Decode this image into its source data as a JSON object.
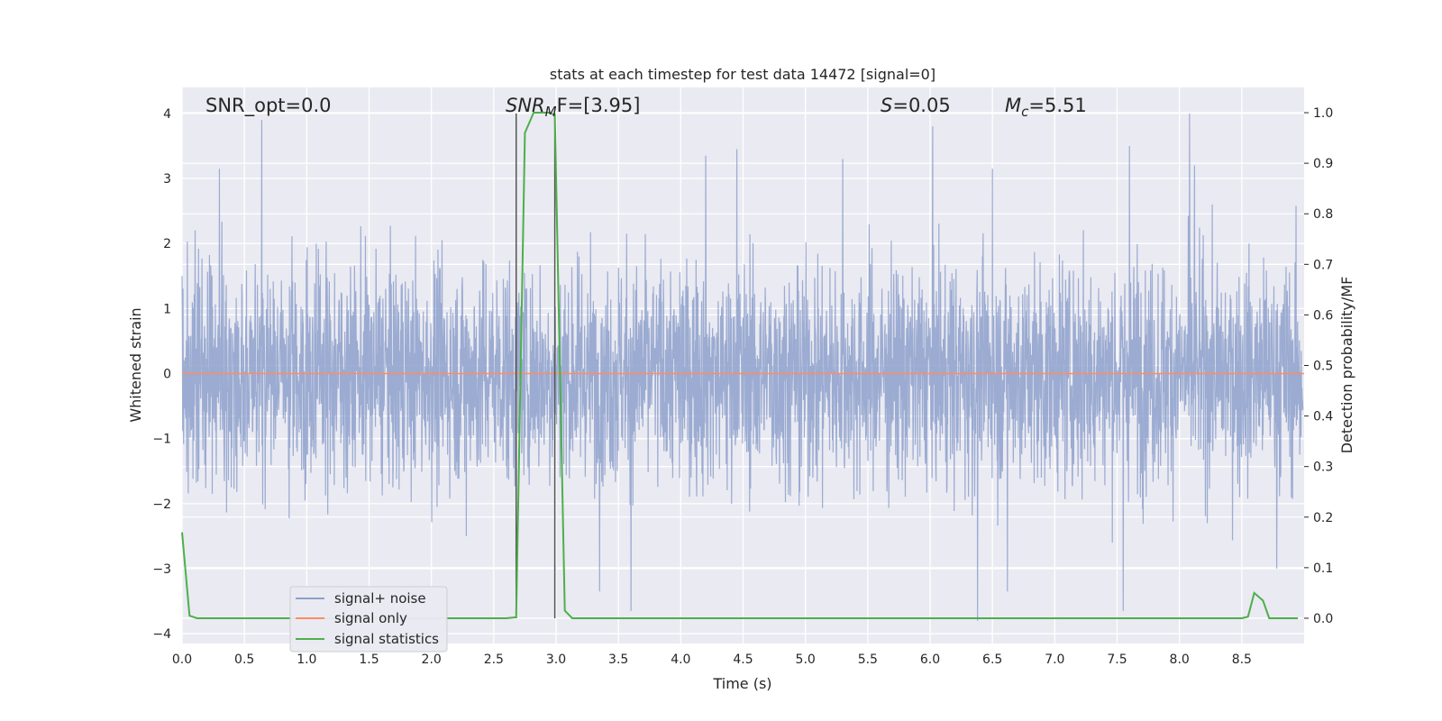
{
  "chart_data": {
    "type": "line",
    "title": "stats at each timestep for test data 14472 [signal=0]",
    "xlabel": "Time (s)",
    "ylabel": "Whitened strain",
    "ylabel_right": "Detection probability/MF",
    "xlim": [
      0.0,
      9.0
    ],
    "ylim": [
      -4.15,
      4.4
    ],
    "ylim_right": [
      -0.05,
      1.05
    ],
    "x_ticks": [
      "0.0",
      "0.5",
      "1.0",
      "1.5",
      "2.0",
      "2.5",
      "3.0",
      "3.5",
      "4.0",
      "4.5",
      "5.0",
      "5.5",
      "6.0",
      "6.5",
      "7.0",
      "7.5",
      "8.0",
      "8.5"
    ],
    "y_ticks": [
      "4",
      "3",
      "2",
      "1",
      "0",
      "−1",
      "−2",
      "−3",
      "−4"
    ],
    "y_ticks_right": [
      "1.0",
      "0.9",
      "0.8",
      "0.7",
      "0.6",
      "0.5",
      "0.4",
      "0.3",
      "0.2",
      "0.1",
      "0.0"
    ],
    "grid": true,
    "legend_position": "lower-left",
    "annotations": {
      "snr_opt": "SNR_opt=0.0",
      "snr_mf": "SNR",
      "snr_mf_sub": "M",
      "snr_mf_rest": "F=[3.95]",
      "s": "S",
      "s_rest": "=0.05",
      "mc": "M",
      "mc_sub": "c",
      "mc_rest": "=5.51"
    },
    "vlines": [
      2.68,
      2.99
    ],
    "series": [
      {
        "name": "signal+ noise",
        "color": "#8da0cb",
        "description_value": "whitened noise, amplitude ~±2 with spikes up to ±4",
        "peaks": [
          [
            0.3,
            3.15
          ],
          [
            0.64,
            3.9
          ],
          [
            2.28,
            -2.5
          ],
          [
            3.35,
            -3.35
          ],
          [
            3.6,
            -3.65
          ],
          [
            4.2,
            3.35
          ],
          [
            4.45,
            3.45
          ],
          [
            5.3,
            3.3
          ],
          [
            6.02,
            3.8
          ],
          [
            6.38,
            -3.8
          ],
          [
            6.5,
            3.15
          ],
          [
            6.62,
            -3.35
          ],
          [
            7.55,
            -3.65
          ],
          [
            7.6,
            3.5
          ],
          [
            8.08,
            4.0
          ],
          [
            8.12,
            3.2
          ],
          [
            8.78,
            -3.0
          ]
        ]
      },
      {
        "name": "signal only",
        "color": "#fc8d62",
        "x": [
          0.0,
          9.0
        ],
        "y": [
          0.0,
          0.0
        ]
      },
      {
        "name": "signal statistics",
        "color": "#4daf4a",
        "axis": "right",
        "x": [
          0.0,
          0.06,
          0.12,
          0.2,
          2.6,
          2.68,
          2.75,
          2.82,
          2.95,
          2.99,
          3.07,
          3.13,
          3.2,
          8.5,
          8.55,
          8.6,
          8.67,
          8.72,
          8.78,
          8.95
        ],
        "y": [
          0.17,
          0.005,
          0.0,
          0.0,
          0.0,
          0.002,
          0.96,
          1.0,
          1.0,
          0.995,
          0.015,
          0.0,
          0.0,
          0.0,
          0.003,
          0.05,
          0.035,
          0.0,
          0.0,
          0.0
        ]
      }
    ]
  }
}
